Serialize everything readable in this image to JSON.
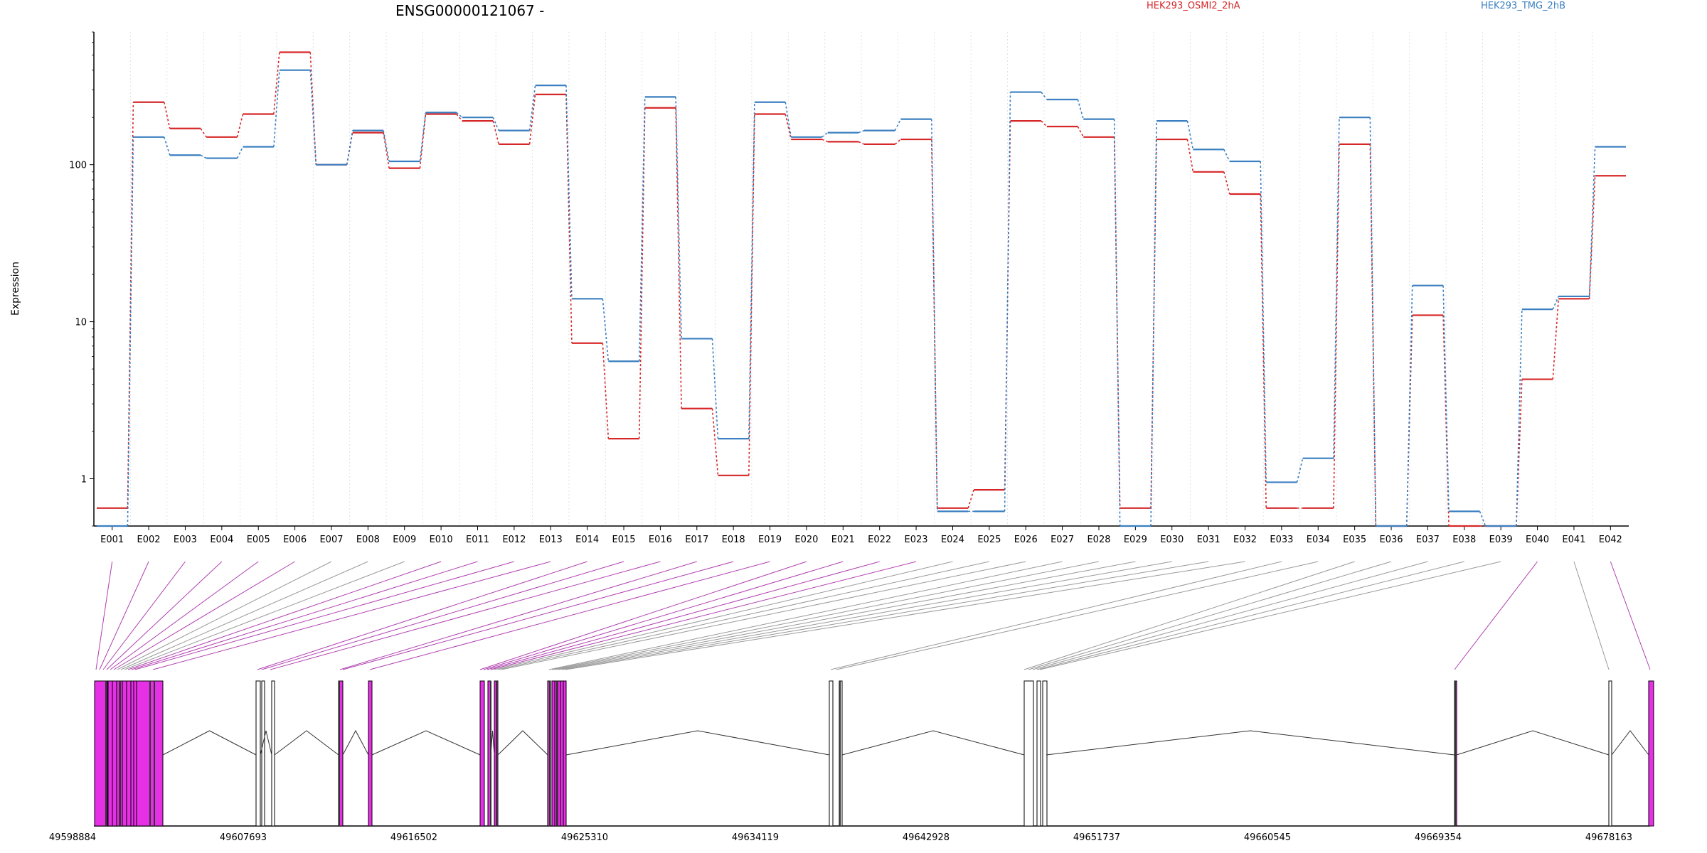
{
  "chart_data": {
    "type": "line",
    "title": "ENSG00000121067 -",
    "ylabel": "Expression",
    "yscale": "log",
    "yticks": [
      1,
      10,
      100
    ],
    "ylim": [
      0.5,
      700
    ],
    "grid": true,
    "legend_position": "top-right",
    "categories": [
      "E001",
      "E002",
      "E003",
      "E004",
      "E005",
      "E006",
      "E007",
      "E008",
      "E009",
      "E010",
      "E011",
      "E012",
      "E013",
      "E014",
      "E015",
      "E016",
      "E017",
      "E018",
      "E019",
      "E020",
      "E021",
      "E022",
      "E023",
      "E024",
      "E025",
      "E026",
      "E027",
      "E028",
      "E029",
      "E030",
      "E031",
      "E032",
      "E033",
      "E034",
      "E035",
      "E036",
      "E037",
      "E038",
      "E039",
      "E040",
      "E041",
      "E042"
    ],
    "series": [
      {
        "name": "HEK293_OSMI2_2hA",
        "color": "#d62728",
        "values": [
          0.65,
          250,
          170,
          150,
          210,
          520,
          100,
          160,
          95,
          210,
          190,
          135,
          280,
          7.3,
          1.8,
          230,
          2.8,
          1.05,
          210,
          145,
          140,
          135,
          145,
          0.65,
          0.85,
          190,
          175,
          150,
          0.65,
          145,
          90,
          65,
          0.65,
          0.65,
          135,
          0.5,
          11,
          0.5,
          0.5,
          4.3,
          14,
          85
        ]
      },
      {
        "name": "HEK293_TMG_2hB",
        "color": "#3a7fc1",
        "values": [
          0.5,
          150,
          115,
          110,
          130,
          400,
          100,
          165,
          105,
          215,
          200,
          165,
          320,
          14,
          5.6,
          270,
          7.8,
          1.8,
          250,
          150,
          160,
          165,
          195,
          0.62,
          0.62,
          290,
          260,
          195,
          0.5,
          190,
          125,
          105,
          0.95,
          1.35,
          200,
          0.5,
          17,
          0.62,
          0.5,
          12,
          14.5,
          130
        ]
      }
    ],
    "gene_coords": [
      "49598884",
      "49607693",
      "49616502",
      "49625310",
      "49634119",
      "49642928",
      "49651737",
      "49660545",
      "49669354",
      "49678163"
    ],
    "exon_colors": {
      "used": "#e630e6",
      "unused": "#ffffff",
      "link_used": "#b040b0",
      "link_unused": "#999999"
    },
    "exons_highlighted": [
      true,
      true,
      true,
      true,
      true,
      true,
      false,
      false,
      false,
      true,
      true,
      true,
      true,
      true,
      true,
      true,
      true,
      true,
      true,
      true,
      true,
      true,
      true,
      false,
      false,
      false,
      false,
      false,
      false,
      false,
      false,
      false,
      false,
      false,
      false,
      false,
      false,
      false,
      false,
      true,
      false,
      true
    ]
  }
}
